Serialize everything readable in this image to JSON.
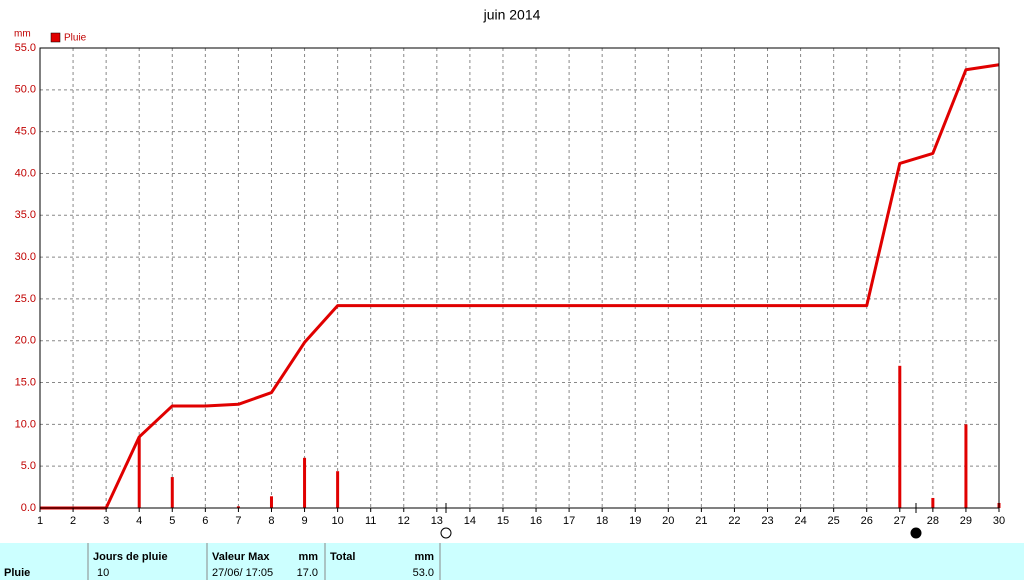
{
  "chart_data": {
    "type": "line",
    "title": "juin 2014",
    "y_unit": "mm",
    "x": [
      1,
      2,
      3,
      4,
      5,
      6,
      7,
      8,
      9,
      10,
      11,
      12,
      13,
      14,
      15,
      16,
      17,
      18,
      19,
      20,
      21,
      22,
      23,
      24,
      25,
      26,
      27,
      28,
      29,
      30
    ],
    "xlim": [
      1,
      30
    ],
    "ylim": [
      0,
      55
    ],
    "yticks": [
      {
        "value": 0,
        "label": "0.0"
      },
      {
        "value": 5,
        "label": "5.0"
      },
      {
        "value": 10,
        "label": "10.0"
      },
      {
        "value": 15,
        "label": "15.0"
      },
      {
        "value": 20,
        "label": "20.0"
      },
      {
        "value": 25,
        "label": "25.0"
      },
      {
        "value": 30,
        "label": "30.0"
      },
      {
        "value": 35,
        "label": "35.0"
      },
      {
        "value": 40,
        "label": "40.0"
      },
      {
        "value": 45,
        "label": "45.0"
      },
      {
        "value": 50,
        "label": "50.0"
      },
      {
        "value": 55,
        "label": "55.0"
      }
    ],
    "grid": true,
    "series": [
      {
        "name": "Pluie",
        "type": "bar",
        "color": "#e00000",
        "values": [
          0,
          0,
          0,
          8.5,
          3.7,
          0,
          0.2,
          1.4,
          6.0,
          4.4,
          0,
          0,
          0,
          0,
          0,
          0,
          0,
          0,
          0,
          0,
          0,
          0,
          0,
          0,
          0,
          0,
          17.0,
          1.2,
          10.0,
          0.6
        ]
      },
      {
        "type": "line",
        "color": "#e00000",
        "values": [
          0,
          0,
          0,
          8.5,
          12.2,
          12.2,
          12.4,
          13.8,
          19.8,
          24.2,
          24.2,
          24.2,
          24.2,
          24.2,
          24.2,
          24.2,
          24.2,
          24.2,
          24.2,
          24.2,
          24.2,
          24.2,
          24.2,
          24.2,
          24.2,
          24.2,
          41.2,
          42.4,
          52.4,
          53.0
        ]
      }
    ]
  },
  "summary": {
    "row_label": "Pluie",
    "columns": [
      {
        "header": "Jours de pluie",
        "value": "10"
      },
      {
        "header": "Valeur Max",
        "value": "27/06/ 17:05",
        "unit": "mm",
        "unit_value": "17.0"
      },
      {
        "header": "Total",
        "unit": "mm",
        "unit_value": "53.0"
      }
    ]
  }
}
